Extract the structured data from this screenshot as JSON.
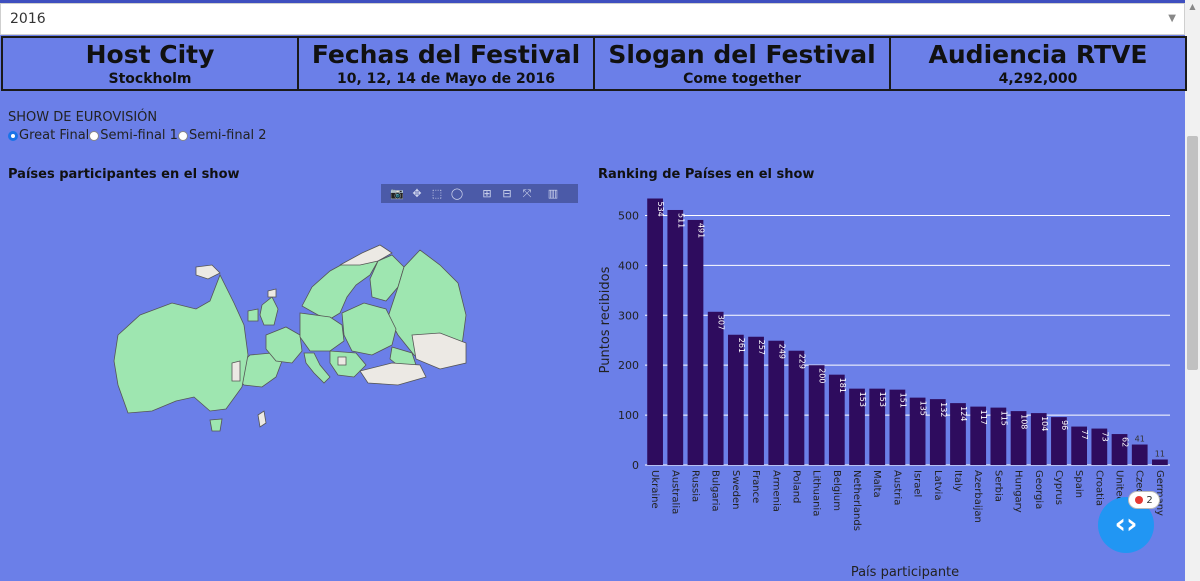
{
  "year_select": {
    "value": "2016"
  },
  "info": [
    {
      "title": "Host City",
      "value": "Stockholm"
    },
    {
      "title": "Fechas del Festival",
      "value": "10, 12, 14 de Mayo de 2016"
    },
    {
      "title": "Slogan del Festival",
      "value": "Come together"
    },
    {
      "title": "Audiencia RTVE",
      "value": "4,292,000"
    }
  ],
  "show": {
    "label": "SHOW DE EUROVISIÓN",
    "options": [
      "Great Final",
      "Semi-final 1",
      "Semi-final 2"
    ],
    "selected": "Great Final"
  },
  "map": {
    "title": "Países participantes en el show",
    "participant_color": "#9ee6b0",
    "other_color": "#ece9e4",
    "modebar_icons": [
      "camera-icon",
      "pan-icon",
      "box-select-icon",
      "lasso-icon",
      "zoom-in-icon",
      "zoom-out-icon",
      "autoscale-icon",
      "plotly-logo-icon"
    ]
  },
  "chart_data": {
    "type": "bar",
    "title": "Ranking de Países en el show",
    "xlabel": "País participante",
    "ylabel": "Puntos recibidos",
    "ylim": [
      0,
      535
    ],
    "yticks": [
      0,
      100,
      200,
      300,
      400,
      500
    ],
    "bar_color": "#2e0c5e",
    "categories": [
      "Ukraine",
      "Australia",
      "Russia",
      "Bulgaria",
      "Sweden",
      "France",
      "Armenia",
      "Poland",
      "Lithuania",
      "Belgium",
      "Netherlands",
      "Malta",
      "Austria",
      "Israel",
      "Latvia",
      "Italy",
      "Azerbaijan",
      "Serbia",
      "Hungary",
      "Georgia",
      "Cyprus",
      "Spain",
      "Croatia",
      "United Kingdom",
      "Czech Republic",
      "Germany"
    ],
    "values": [
      534,
      511,
      491,
      307,
      261,
      257,
      249,
      229,
      200,
      181,
      153,
      153,
      151,
      135,
      132,
      124,
      117,
      115,
      108,
      104,
      96,
      77,
      73,
      62,
      41,
      11
    ]
  },
  "help_widget": {
    "badge_count": "2",
    "icon": "chevron-code-icon"
  }
}
